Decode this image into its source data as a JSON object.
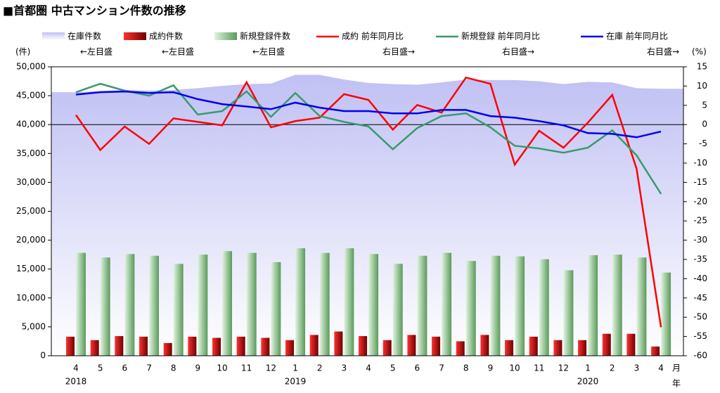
{
  "chart_data": {
    "type": "combo",
    "title": "■首都圏 中古マンション件数の推移",
    "y_unit": "(件)",
    "y2_unit": "(%)",
    "x_month_unit": "月",
    "x_year_unit": "年",
    "categories": [
      "4",
      "5",
      "6",
      "7",
      "8",
      "9",
      "10",
      "11",
      "12",
      "1",
      "2",
      "3",
      "4",
      "5",
      "6",
      "7",
      "8",
      "9",
      "10",
      "11",
      "12",
      "1",
      "2",
      "3",
      "4"
    ],
    "years": [
      "2018",
      null,
      null,
      null,
      null,
      null,
      null,
      null,
      null,
      "2019",
      null,
      null,
      null,
      null,
      null,
      null,
      null,
      null,
      null,
      null,
      null,
      "2020",
      null,
      null,
      null
    ],
    "ylim": [
      0,
      50000
    ],
    "yticks": [
      0,
      {
        "value": 5000,
        "label": "5,000"
      },
      {
        "value": 10000,
        "label": "10,000"
      },
      {
        "value": 15000,
        "label": "15,000"
      },
      {
        "value": 20000,
        "label": "20,000"
      },
      {
        "value": 25000,
        "label": "25,000"
      },
      {
        "value": 30000,
        "label": "30,000"
      },
      {
        "value": 35000,
        "label": "35,000"
      },
      {
        "value": 40000,
        "label": "40,000"
      },
      {
        "value": 45000,
        "label": "45,000"
      },
      {
        "value": 50000,
        "label": "50,000"
      }
    ],
    "y2lim": [
      -60,
      15
    ],
    "y2ticks": [
      15,
      10,
      5,
      0,
      -5,
      -10,
      -15,
      -20,
      -25,
      -30,
      -35,
      -40,
      -45,
      -50,
      -55,
      -60
    ],
    "series": [
      {
        "name": "在庫件数",
        "note": "←左目盛",
        "kind": "area",
        "color": "#c6c6f4",
        "values": [
          45600,
          45800,
          46000,
          45900,
          46000,
          46300,
          46700,
          47000,
          47100,
          48600,
          48600,
          47800,
          47200,
          47000,
          46900,
          47300,
          47800,
          47700,
          47700,
          47500,
          47000,
          47400,
          47300,
          46300,
          46200
        ]
      },
      {
        "name": "成約件数",
        "note": "←左目盛",
        "kind": "bar",
        "color": "#d00000",
        "values": [
          3300,
          2700,
          3400,
          3300,
          2200,
          3300,
          3100,
          3300,
          3100,
          2700,
          3600,
          4200,
          3400,
          2700,
          3600,
          3300,
          2500,
          3600,
          2700,
          3300,
          2700,
          2700,
          3800,
          3800,
          1600
        ]
      },
      {
        "name": "新規登録件数",
        "note": "←左目盛",
        "kind": "bar",
        "color": "#9ccf9c",
        "values": [
          17800,
          17000,
          17600,
          17300,
          15900,
          17500,
          18100,
          17800,
          16200,
          18600,
          17800,
          18600,
          17600,
          15900,
          17300,
          17800,
          16400,
          17300,
          17200,
          16700,
          14800,
          17400,
          17500,
          17000,
          14400
        ]
      },
      {
        "name": "成約 前年同月比",
        "note": "右目盛→",
        "kind": "line",
        "axis": "y2",
        "color": "#ff0000",
        "values": [
          2.5,
          -6.6,
          -0.5,
          -5,
          1.6,
          0.7,
          -0.2,
          11,
          -0.7,
          0.9,
          1.8,
          7.9,
          6.4,
          -1.3,
          5.1,
          3.1,
          12.2,
          10.6,
          -10.4,
          -1.6,
          -6,
          0.5,
          7.7,
          -11.5,
          -52.6
        ]
      },
      {
        "name": "新規登録 前年同月比",
        "note": "右目盛→",
        "kind": "line",
        "axis": "y2",
        "color": "#3a9a6a",
        "values": [
          8.4,
          10.6,
          8.8,
          7.5,
          10.2,
          2.6,
          3.5,
          8.6,
          2,
          8.2,
          2.2,
          0.7,
          -0.5,
          -6.4,
          -0.9,
          2.2,
          2.9,
          -0.7,
          -5.5,
          -6.2,
          -7.3,
          -6,
          -1.5,
          -8,
          -18
        ]
      },
      {
        "name": "在庫 前年同月比",
        "note": "右目盛→",
        "kind": "line",
        "axis": "y2",
        "color": "#0000ee",
        "values": [
          7.8,
          8.4,
          8.6,
          8.2,
          8.4,
          6.6,
          5.3,
          4.7,
          4,
          5.7,
          4.4,
          3.5,
          3.5,
          2.9,
          2.9,
          3.8,
          3.8,
          2.2,
          1.8,
          0.9,
          -0.2,
          -2.2,
          -2.4,
          -3.3,
          -1.8
        ]
      }
    ]
  }
}
